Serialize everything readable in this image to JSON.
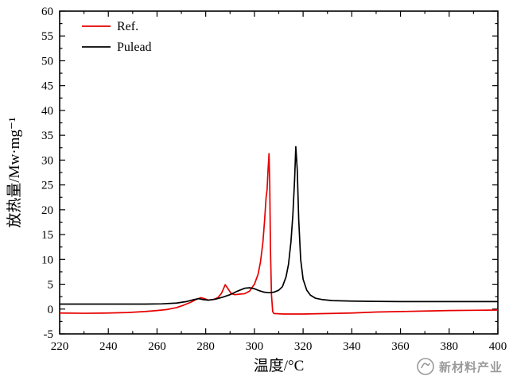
{
  "watermark": {
    "text": "新材料产业",
    "color": "#9a9a9a"
  },
  "chart_data": {
    "type": "line",
    "title": "",
    "xlabel": "温度/°C",
    "ylabel": "放热量/Mw·mg⁻¹",
    "xlim": [
      220,
      400
    ],
    "ylim": [
      -5,
      60
    ],
    "xtick_step": 20,
    "xminor_step": 10,
    "ytick_step": 5,
    "yminor_step": 2.5,
    "grid": false,
    "legend_position": "top-left-inside",
    "axis_color": "#000000",
    "background": "#ffffff",
    "legend": [
      "Ref.",
      "Pulead"
    ],
    "series": [
      {
        "name": "Ref.",
        "color": "#e60000",
        "points": [
          [
            220,
            -0.8
          ],
          [
            230,
            -0.85
          ],
          [
            240,
            -0.8
          ],
          [
            248,
            -0.7
          ],
          [
            255,
            -0.5
          ],
          [
            260,
            -0.3
          ],
          [
            264,
            -0.1
          ],
          [
            268,
            0.3
          ],
          [
            271,
            0.8
          ],
          [
            274,
            1.4
          ],
          [
            276,
            1.9
          ],
          [
            278,
            2.3
          ],
          [
            279.5,
            2.1
          ],
          [
            281,
            1.8
          ],
          [
            283,
            1.9
          ],
          [
            285,
            2.3
          ],
          [
            286.5,
            3.2
          ],
          [
            288,
            4.9
          ],
          [
            289,
            4.2
          ],
          [
            290.5,
            3.1
          ],
          [
            292,
            2.9
          ],
          [
            294,
            3.0
          ],
          [
            296,
            3.1
          ],
          [
            298,
            3.6
          ],
          [
            300,
            5.0
          ],
          [
            301.5,
            7.0
          ],
          [
            302.5,
            9.5
          ],
          [
            303.5,
            13.5
          ],
          [
            304.2,
            18
          ],
          [
            304.8,
            22.5
          ],
          [
            305.2,
            24
          ],
          [
            305.6,
            28
          ],
          [
            306,
            31.3
          ],
          [
            306.3,
            25
          ],
          [
            306.6,
            12
          ],
          [
            307,
            3
          ],
          [
            307.5,
            -0.5
          ],
          [
            308,
            -0.9
          ],
          [
            312,
            -1.0
          ],
          [
            320,
            -1.0
          ],
          [
            330,
            -0.9
          ],
          [
            340,
            -0.8
          ],
          [
            350,
            -0.6
          ],
          [
            360,
            -0.5
          ],
          [
            370,
            -0.4
          ],
          [
            380,
            -0.3
          ],
          [
            390,
            -0.25
          ],
          [
            400,
            -0.2
          ]
        ]
      },
      {
        "name": "Pulead",
        "color": "#000000",
        "points": [
          [
            220,
            1.0
          ],
          [
            240,
            1.0
          ],
          [
            255,
            1.0
          ],
          [
            262,
            1.05
          ],
          [
            268,
            1.2
          ],
          [
            272,
            1.5
          ],
          [
            275,
            1.9
          ],
          [
            277,
            2.1
          ],
          [
            279,
            1.9
          ],
          [
            281,
            1.8
          ],
          [
            284,
            2.0
          ],
          [
            287,
            2.4
          ],
          [
            290,
            2.9
          ],
          [
            293,
            3.6
          ],
          [
            296,
            4.2
          ],
          [
            298,
            4.3
          ],
          [
            300,
            4.1
          ],
          [
            302,
            3.7
          ],
          [
            304,
            3.4
          ],
          [
            306,
            3.3
          ],
          [
            308,
            3.4
          ],
          [
            310,
            3.8
          ],
          [
            311.5,
            4.5
          ],
          [
            313,
            6.5
          ],
          [
            314,
            9
          ],
          [
            315,
            13.5
          ],
          [
            315.8,
            19
          ],
          [
            316.5,
            26
          ],
          [
            317,
            32.7
          ],
          [
            317.6,
            28
          ],
          [
            318.2,
            18
          ],
          [
            319,
            10
          ],
          [
            320,
            6
          ],
          [
            321.5,
            3.8
          ],
          [
            323,
            2.8
          ],
          [
            325,
            2.2
          ],
          [
            328,
            1.9
          ],
          [
            332,
            1.7
          ],
          [
            340,
            1.6
          ],
          [
            350,
            1.55
          ],
          [
            360,
            1.5
          ],
          [
            380,
            1.5
          ],
          [
            400,
            1.5
          ]
        ]
      }
    ]
  }
}
